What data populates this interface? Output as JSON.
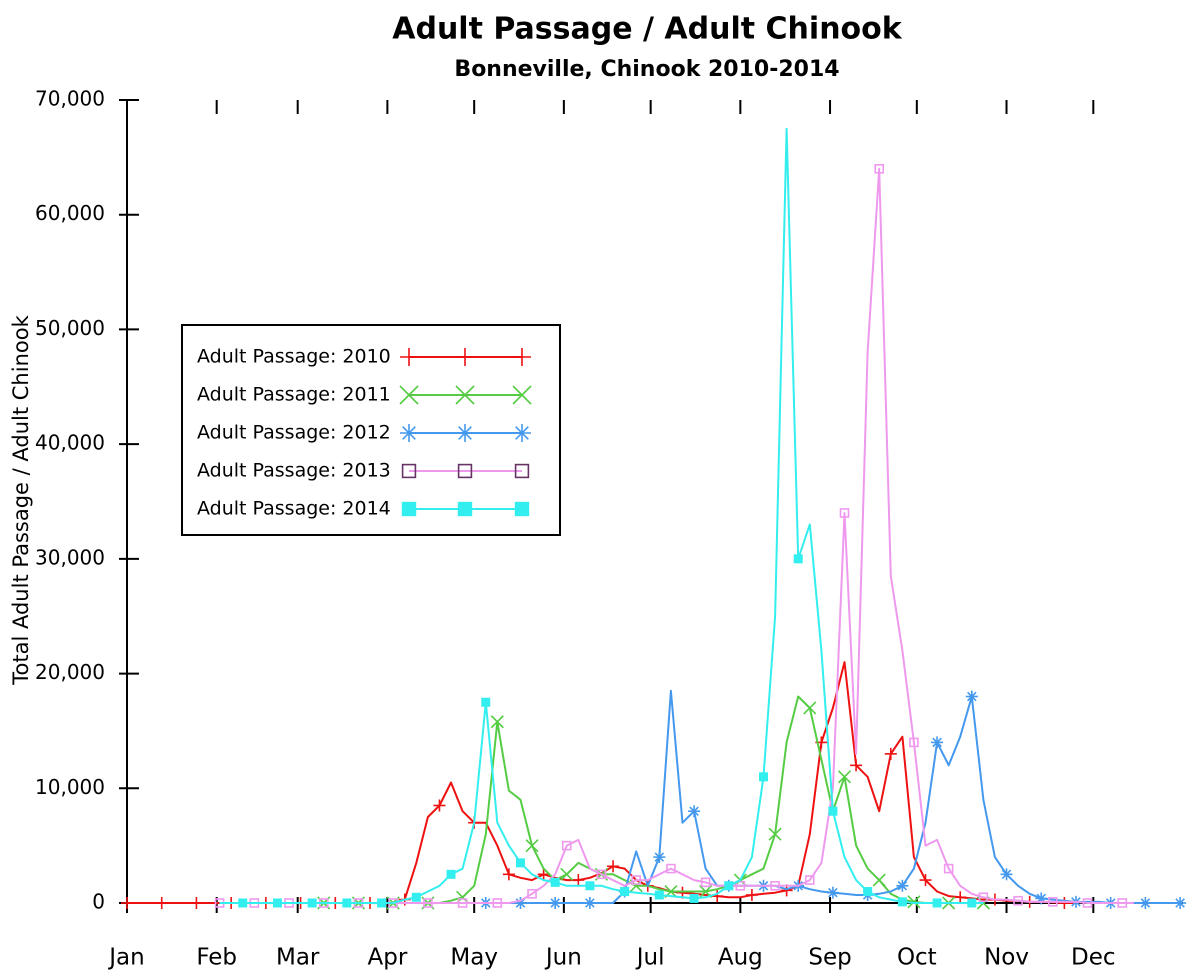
{
  "chart_data": {
    "type": "line",
    "title": "Adult Passage / Adult Chinook",
    "subtitle": "Bonneville, Chinook 2010-2014",
    "y_label": "Total Adult Passage / Adult Chinook",
    "x": [
      1,
      5,
      9,
      13,
      17,
      21,
      25,
      29,
      33,
      37,
      41,
      45,
      49,
      53,
      57,
      61,
      65,
      69,
      73,
      77,
      81,
      85,
      89,
      93,
      97,
      101,
      105,
      109,
      113,
      117,
      121,
      125,
      129,
      133,
      137,
      141,
      145,
      149,
      153,
      157,
      161,
      165,
      169,
      173,
      177,
      181,
      185,
      189,
      193,
      197,
      201,
      205,
      209,
      213,
      217,
      221,
      225,
      229,
      233,
      237,
      241,
      245,
      249,
      253,
      257,
      261,
      265,
      269,
      273,
      277,
      281,
      285,
      289,
      293,
      297,
      301,
      305,
      309,
      313,
      317,
      321,
      325,
      329,
      333,
      337,
      341,
      345,
      349,
      353,
      357,
      361,
      365
    ],
    "xlim": [
      1,
      366
    ],
    "xticks": [
      {
        "value": 1,
        "label": "Jan"
      },
      {
        "value": 32,
        "label": "Feb"
      },
      {
        "value": 60,
        "label": "Mar"
      },
      {
        "value": 91,
        "label": "Apr"
      },
      {
        "value": 121,
        "label": "May"
      },
      {
        "value": 152,
        "label": "Jun"
      },
      {
        "value": 182,
        "label": "Jul"
      },
      {
        "value": 213,
        "label": "Aug"
      },
      {
        "value": 244,
        "label": "Sep"
      },
      {
        "value": 274,
        "label": "Oct"
      },
      {
        "value": 305,
        "label": "Nov"
      },
      {
        "value": 335,
        "label": "Dec"
      }
    ],
    "ylim": [
      0,
      70000
    ],
    "yticks": [
      0,
      {
        "value": 10000,
        "label": "10,000"
      },
      {
        "value": 20000,
        "label": "20,000"
      },
      {
        "value": 30000,
        "label": "30,000"
      },
      {
        "value": 40000,
        "label": "40,000"
      },
      {
        "value": 50000,
        "label": "50,000"
      },
      {
        "value": 60000,
        "label": "60,000"
      },
      {
        "value": 70000,
        "label": "70,000"
      }
    ],
    "legend": "upper left",
    "series": [
      {
        "name": "Adult Passage: 2010",
        "color": "#ee1111",
        "marker": "plus",
        "values": [
          0,
          0,
          0,
          0,
          0,
          0,
          0,
          0,
          0,
          0,
          0,
          0,
          0,
          0,
          0,
          0,
          0,
          0,
          0,
          0,
          0,
          0,
          0,
          0,
          300,
          3500,
          7500,
          8500,
          10500,
          8000,
          7000,
          7000,
          5000,
          2500,
          2200,
          2000,
          2500,
          2200,
          2000,
          2000,
          2200,
          2600,
          3200,
          3000,
          2000,
          1500,
          1300,
          1000,
          900,
          800,
          700,
          600,
          500,
          500,
          700,
          800,
          900,
          1100,
          1500,
          6000,
          14000,
          17000,
          21000,
          12000,
          11000,
          8000,
          13000,
          14500,
          4000,
          2000,
          1000,
          600,
          500,
          400,
          300,
          300,
          200,
          200,
          100,
          100,
          50,
          0,
          0,
          null,
          null,
          null,
          null,
          null,
          null,
          null,
          null,
          null
        ]
      },
      {
        "name": "Adult Passage: 2011",
        "color": "#55cc44",
        "marker": "cross",
        "values": [
          null,
          null,
          null,
          null,
          null,
          null,
          null,
          null,
          null,
          null,
          null,
          null,
          null,
          null,
          null,
          0,
          0,
          0,
          0,
          0,
          0,
          0,
          0,
          0,
          0,
          0,
          0,
          0,
          200,
          500,
          1500,
          6000,
          15800,
          9800,
          9000,
          5000,
          3000,
          2000,
          2500,
          3500,
          3000,
          2500,
          2500,
          2000,
          1500,
          1500,
          1200,
          1000,
          1000,
          1000,
          1000,
          1200,
          1500,
          2000,
          2500,
          3000,
          6000,
          14000,
          18000,
          17000,
          12500,
          8000,
          11000,
          5000,
          3000,
          2000,
          800,
          300,
          100,
          0,
          0,
          0,
          0,
          0,
          0,
          null,
          null,
          null,
          null,
          null,
          null,
          null,
          null,
          null,
          null,
          null,
          null,
          null,
          null,
          null,
          null,
          null
        ]
      },
      {
        "name": "Adult Passage: 2012",
        "color": "#4499ee",
        "marker": "asterisk",
        "values": [
          null,
          null,
          null,
          null,
          null,
          null,
          null,
          null,
          null,
          null,
          null,
          null,
          null,
          null,
          null,
          null,
          null,
          null,
          null,
          null,
          null,
          null,
          null,
          null,
          null,
          null,
          null,
          null,
          null,
          null,
          0,
          0,
          0,
          0,
          0,
          0,
          0,
          0,
          0,
          0,
          0,
          0,
          0,
          1000,
          4500,
          1500,
          4000,
          18500,
          7000,
          8000,
          3000,
          1500,
          1500,
          1500,
          1500,
          1500,
          1500,
          1200,
          1500,
          1200,
          1000,
          900,
          800,
          700,
          700,
          800,
          1000,
          1500,
          3000,
          7000,
          14000,
          12000,
          14500,
          18000,
          9000,
          4000,
          2500,
          1500,
          800,
          400,
          300,
          200,
          100,
          100,
          100,
          0,
          0,
          0,
          0,
          0,
          0,
          0
        ]
      },
      {
        "name": "Adult Passage: 2013",
        "color": "#ee99ee",
        "marker": "square",
        "values": [
          null,
          null,
          null,
          null,
          null,
          null,
          null,
          null,
          0,
          0,
          0,
          0,
          0,
          0,
          0,
          0,
          0,
          0,
          0,
          0,
          0,
          0,
          0,
          0,
          0,
          0,
          0,
          0,
          0,
          0,
          0,
          0,
          0,
          0,
          200,
          800,
          1500,
          2500,
          5000,
          5500,
          3000,
          2500,
          2000,
          1500,
          2000,
          2000,
          2500,
          3000,
          2500,
          2000,
          1800,
          1500,
          1500,
          1500,
          1500,
          1500,
          1500,
          1500,
          1500,
          2000,
          3500,
          10000,
          34000,
          13000,
          48000,
          64000,
          28500,
          22000,
          14000,
          5000,
          5500,
          3000,
          1500,
          800,
          500,
          300,
          300,
          200,
          100,
          100,
          100,
          100,
          100,
          0,
          0,
          0,
          0,
          0,
          null,
          null,
          null,
          null
        ]
      },
      {
        "name": "Adult Passage: 2014",
        "color": "#33eeee",
        "marker": "filled-square",
        "values": [
          null,
          null,
          null,
          null,
          null,
          null,
          null,
          null,
          0,
          0,
          0,
          0,
          0,
          0,
          0,
          0,
          0,
          0,
          0,
          0,
          0,
          0,
          0,
          0,
          300,
          500,
          1000,
          1500,
          2500,
          3000,
          7000,
          17500,
          7000,
          5000,
          3500,
          2500,
          2000,
          1800,
          1500,
          1500,
          1500,
          1500,
          1200,
          1000,
          900,
          800,
          700,
          600,
          500,
          400,
          500,
          800,
          1500,
          2000,
          4000,
          11000,
          25000,
          67500,
          30000,
          33000,
          22000,
          8000,
          4000,
          2000,
          1000,
          500,
          300,
          100,
          0,
          0,
          0,
          0,
          0,
          0,
          0,
          null,
          null,
          null,
          null,
          null,
          null,
          null,
          null,
          null,
          null,
          null,
          null,
          null,
          null,
          null,
          null,
          null
        ]
      }
    ]
  }
}
